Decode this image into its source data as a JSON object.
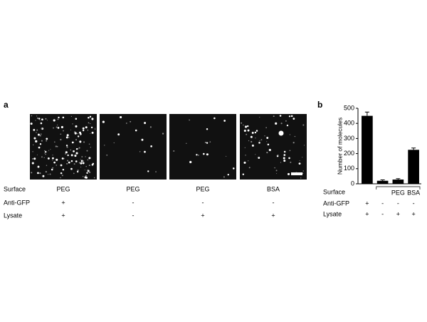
{
  "panel_a": {
    "label": "a",
    "row_labels": {
      "surface": "Surface",
      "anti_gfp": "Anti-GFP",
      "lysate": "Lysate"
    },
    "images": [
      {
        "surface": "PEG",
        "anti_gfp": "+",
        "lysate": "+"
      },
      {
        "surface": "PEG",
        "anti_gfp": "-",
        "lysate": "-"
      },
      {
        "surface": "PEG",
        "anti_gfp": "-",
        "lysate": "+"
      },
      {
        "surface": "BSA",
        "anti_gfp": "-",
        "lysate": "+"
      }
    ]
  },
  "chart_data": {
    "type": "bar",
    "label": "b",
    "y_label": "Number of molecules",
    "values": [
      450,
      20,
      28,
      225
    ],
    "errors": [
      25,
      6,
      6,
      12
    ],
    "color": "#000000",
    "ylim": [
      0,
      500
    ],
    "yticks": [
      0,
      100,
      200,
      300,
      400,
      500
    ],
    "surface_label": "Surface",
    "surface_groups": [
      "PEG",
      "BSA"
    ],
    "anti_gfp_label": "Anti-GFP",
    "anti_gfp": [
      "+",
      "-",
      "-",
      "-"
    ],
    "lysate_label": "Lysate",
    "lysate": [
      "+",
      "-",
      "+",
      "+"
    ]
  }
}
